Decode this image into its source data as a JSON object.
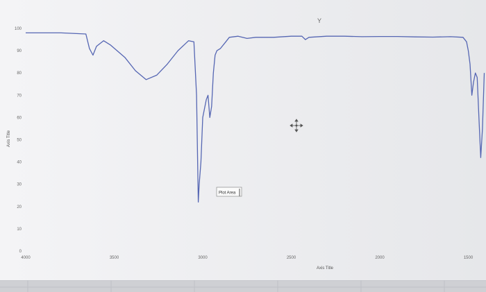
{
  "chart_data": {
    "type": "line",
    "title": "Y",
    "xlabel": "Axis Title",
    "ylabel": "Axis Title",
    "xlim": [
      4000,
      1400
    ],
    "ylim": [
      0,
      100
    ],
    "x_ticks": [
      "4000",
      "3500",
      "3000",
      "2500",
      "2000",
      "1500"
    ],
    "y_ticks": [
      "0",
      "10",
      "20",
      "30",
      "40",
      "50",
      "60",
      "70",
      "80",
      "90",
      "100"
    ],
    "grid": false,
    "legend": "none",
    "line_color": "#5566b3",
    "series": [
      {
        "x": [
          4000,
          3800,
          3660,
          3640,
          3620,
          3600,
          3560,
          3520,
          3440,
          3380,
          3320,
          3260,
          3200,
          3140,
          3080,
          3050,
          3035,
          3025,
          3020,
          3010,
          3000,
          2980,
          2970,
          2960,
          2950,
          2940,
          2930,
          2920,
          2900,
          2870,
          2850,
          2800,
          2750,
          2700,
          2600,
          2500,
          2440,
          2420,
          2400,
          2300,
          2200,
          2100,
          2000,
          1900,
          1800,
          1700,
          1600,
          1530,
          1510,
          1500,
          1490,
          1480,
          1470,
          1460,
          1450,
          1440,
          1430,
          1420,
          1410
        ],
        "y": [
          98,
          98,
          97.5,
          91,
          88,
          92,
          94.5,
          92.5,
          87,
          81,
          77,
          79,
          84,
          90,
          94.5,
          94,
          70,
          22,
          30,
          40,
          60,
          68,
          70,
          60,
          65,
          80,
          88,
          90,
          91,
          94,
          96,
          96.5,
          95.5,
          96,
          96,
          96.5,
          96.5,
          95,
          96,
          96.5,
          96.5,
          96.3,
          96.4,
          96.4,
          96.2,
          96.1,
          96.3,
          96,
          94,
          90,
          84,
          70,
          76,
          80,
          78,
          60,
          42,
          55,
          80
        ]
      }
    ],
    "annotations": [
      "Plot Area"
    ]
  }
}
